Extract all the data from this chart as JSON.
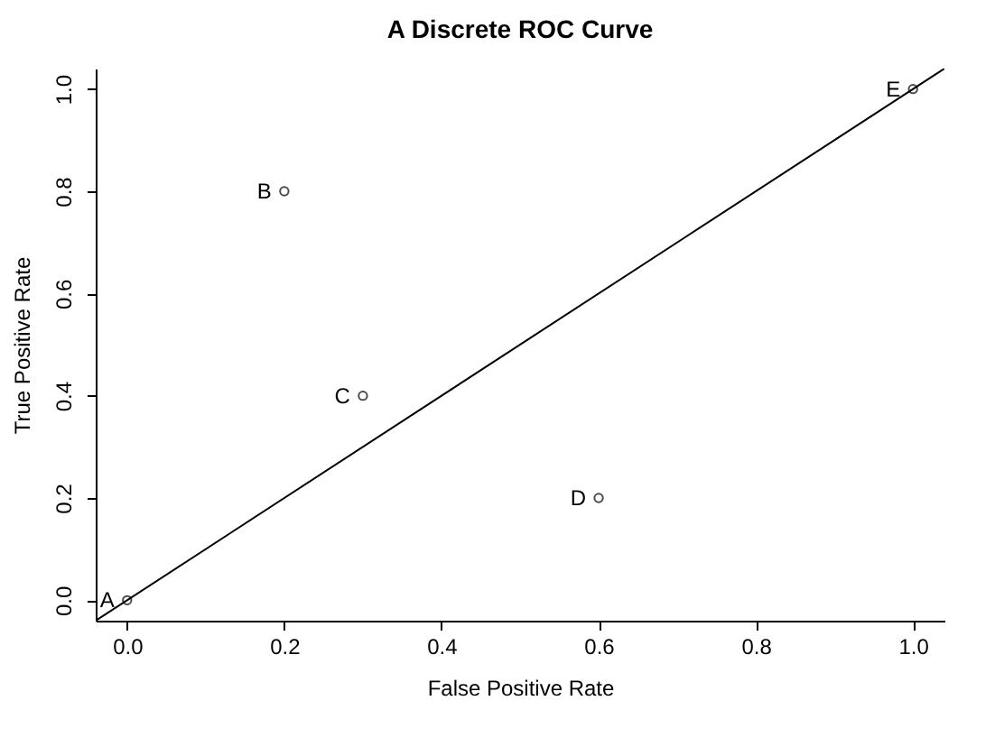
{
  "chart_data": {
    "type": "scatter",
    "title": "A Discrete ROC Curve",
    "xlabel": "False Positive Rate",
    "ylabel": "True Positive Rate",
    "xlim": [
      -0.04,
      1.04
    ],
    "ylim": [
      -0.04,
      1.04
    ],
    "xticks": [
      {
        "value": 0,
        "label": "0.0"
      },
      {
        "value": 0.2,
        "label": "0.2"
      },
      {
        "value": 0.4,
        "label": "0.4"
      },
      {
        "value": 0.6,
        "label": "0.6"
      },
      {
        "value": 0.8,
        "label": "0.8"
      },
      {
        "value": 1,
        "label": "1.0"
      }
    ],
    "yticks": [
      {
        "value": 0,
        "label": "0.0"
      },
      {
        "value": 0.2,
        "label": "0.2"
      },
      {
        "value": 0.4,
        "label": "0.4"
      },
      {
        "value": 0.6,
        "label": "0.6"
      },
      {
        "value": 0.8,
        "label": "0.8"
      },
      {
        "value": 1,
        "label": "1.0"
      }
    ],
    "grid": false,
    "series": [
      {
        "marker": "circle",
        "color": "#000000",
        "x": [
          0,
          0.2,
          0.3,
          0.6,
          1
        ],
        "values": [
          0,
          0.8,
          0.4,
          0.2,
          1
        ]
      },
      {
        "type": "line",
        "marker": "none",
        "color": "#000000",
        "x": [
          -0.04,
          1.04
        ],
        "values": [
          -0.04,
          1.04
        ]
      }
    ],
    "annotations": [
      {
        "text": "A",
        "x": 0,
        "y": 0
      },
      {
        "text": "B",
        "x": 0.2,
        "y": 0.8
      },
      {
        "text": "C",
        "x": 0.3,
        "y": 0.4
      },
      {
        "text": "D",
        "x": 0.6,
        "y": 0.2
      },
      {
        "text": "E",
        "x": 1,
        "y": 1
      }
    ]
  }
}
